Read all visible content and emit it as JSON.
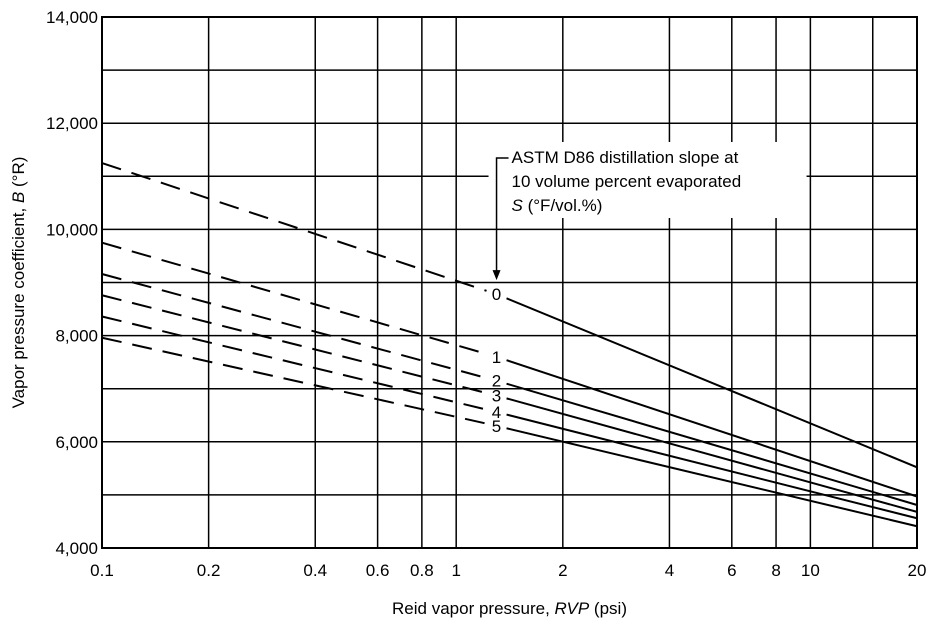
{
  "chart_data": {
    "type": "line",
    "x_scale": "log",
    "y_scale": "linear",
    "xlim": [
      0.1,
      20
    ],
    "ylim": [
      4000,
      14000
    ],
    "grid": true,
    "xlabel": {
      "prefix": "Reid vapor pressure, ",
      "italic": "RVP",
      "suffix": " (psi)"
    },
    "ylabel": {
      "prefix": "Vapor pressure coefficient, ",
      "italic": "B",
      "suffix": " (°R)"
    },
    "x_ticks": [
      0.1,
      0.2,
      0.4,
      0.6,
      0.8,
      1,
      2,
      4,
      6,
      8,
      10,
      20
    ],
    "x_tick_labels": [
      "0.1",
      "0.2",
      "0.4",
      "0.6",
      "0.8",
      "1",
      "2",
      "4",
      "6",
      "8",
      "10",
      "20"
    ],
    "y_ticks": [
      4000,
      6000,
      8000,
      10000,
      12000,
      14000
    ],
    "y_tick_labels": [
      "4,000",
      "6,000",
      "8,000",
      "10,000",
      "12,000",
      "14,000"
    ],
    "x_grid": [
      0.1,
      0.2,
      0.4,
      0.6,
      0.8,
      1,
      2,
      4,
      6,
      8,
      10,
      15,
      20
    ],
    "y_grid": [
      4000,
      5000,
      6000,
      7000,
      8000,
      9000,
      10000,
      11000,
      12000,
      13000,
      14000
    ],
    "annotation": {
      "lines": [
        "ASTM D86 distillation slope at",
        "10 volume percent evaporated"
      ],
      "symbol": "S",
      "symbol_suffix": " (°F/vol.%)"
    },
    "series": [
      {
        "name": "0",
        "x": [
          0.1,
          1.3,
          20
        ],
        "y": [
          11250,
          8780,
          5520
        ],
        "solid_from": 1.3
      },
      {
        "name": "1",
        "x": [
          0.1,
          1.3,
          20
        ],
        "y": [
          9750,
          7600,
          4970
        ],
        "solid_from": 1.3
      },
      {
        "name": "2",
        "x": [
          0.1,
          1.3,
          20
        ],
        "y": [
          9160,
          7150,
          4810
        ],
        "solid_from": 1.3
      },
      {
        "name": "3",
        "x": [
          0.1,
          1.3,
          20
        ],
        "y": [
          8760,
          6870,
          4680
        ],
        "solid_from": 1.3
      },
      {
        "name": "4",
        "x": [
          0.1,
          1.3,
          20
        ],
        "y": [
          8360,
          6560,
          4560
        ],
        "solid_from": 1.3
      },
      {
        "name": "5",
        "x": [
          0.1,
          1.3,
          20
        ],
        "y": [
          7960,
          6300,
          4410
        ],
        "solid_from": 1.3
      }
    ]
  }
}
